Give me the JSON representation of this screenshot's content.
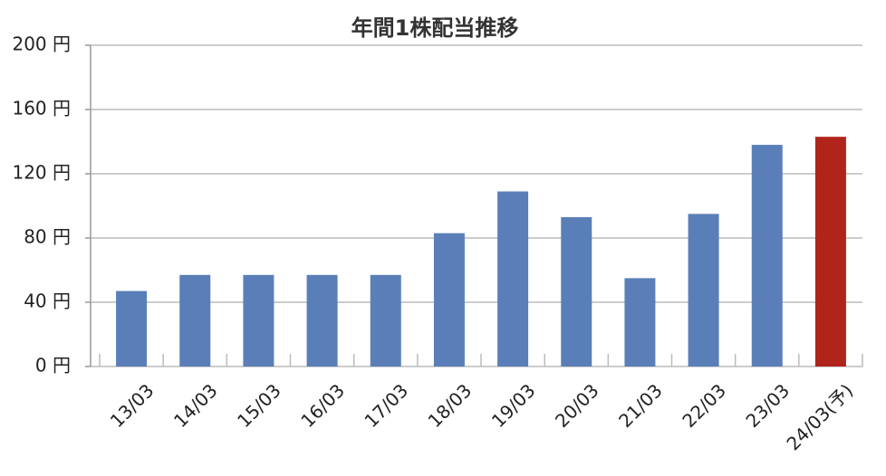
{
  "chart_data": {
    "type": "bar",
    "title": "年間1株配当推移",
    "categories": [
      "13/03",
      "14/03",
      "15/03",
      "16/03",
      "17/03",
      "18/03",
      "19/03",
      "20/03",
      "21/03",
      "22/03",
      "23/03",
      "24/03(予)"
    ],
    "values": [
      47,
      57,
      57,
      57,
      57,
      83,
      109,
      93,
      55,
      95,
      138,
      143
    ],
    "colors": [
      "#5a7fb8",
      "#5a7fb8",
      "#5a7fb8",
      "#5a7fb8",
      "#5a7fb8",
      "#5a7fb8",
      "#5a7fb8",
      "#5a7fb8",
      "#5a7fb8",
      "#5a7fb8",
      "#5a7fb8",
      "#b0241b"
    ],
    "ylim": [
      0,
      200
    ],
    "yticks": [
      {
        "value": 0,
        "label": "0 円"
      },
      {
        "value": 40,
        "label": "40 円"
      },
      {
        "value": 80,
        "label": "80 円"
      },
      {
        "value": 120,
        "label": "120 円"
      },
      {
        "value": 160,
        "label": "160 円"
      },
      {
        "value": 200,
        "label": "200 円"
      }
    ],
    "grid": true
  }
}
